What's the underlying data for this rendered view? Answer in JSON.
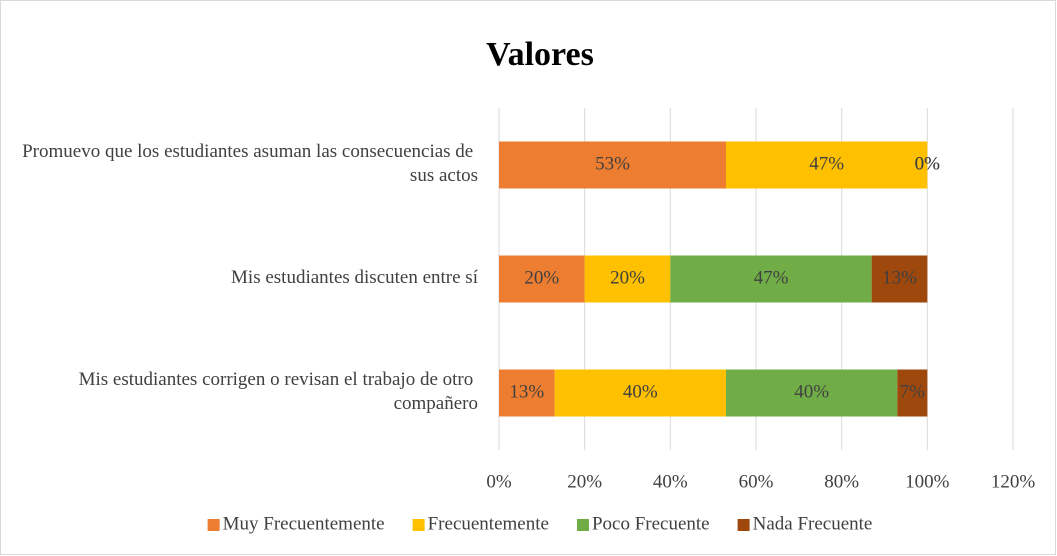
{
  "chart_data": {
    "type": "stacked_barh",
    "title": "Valores",
    "categories": [
      "Promuevo que los estudiantes asuman las consecuencias de sus actos",
      "Mis estudiantes discuten entre sí",
      "Mis estudiantes corrigen o revisan el trabajo de otro compañero"
    ],
    "series": [
      {
        "name": "Muy Frecuentemente",
        "color": "#ed7d31",
        "values": [
          53,
          20,
          13
        ],
        "value_labels": [
          "53%",
          "20%",
          "13%"
        ]
      },
      {
        "name": "Frecuentemente",
        "color": "#ffc000",
        "values": [
          47,
          20,
          40
        ],
        "value_labels": [
          "47%",
          "20%",
          "40%"
        ]
      },
      {
        "name": "Poco Frecuente",
        "color": "#70ad47",
        "values": [
          0,
          47,
          40
        ],
        "value_labels": [
          "0%",
          "47%",
          "40%"
        ]
      },
      {
        "name": "Nada Frecuente",
        "color": "#9e480e",
        "values": [
          0,
          13,
          7
        ],
        "value_labels": [
          "0%",
          "13%",
          "7%"
        ]
      }
    ],
    "xlim": [
      0,
      120
    ],
    "xticks": [
      {
        "value": 0,
        "label": "0%"
      },
      {
        "value": 20,
        "label": "20%"
      },
      {
        "value": 40,
        "label": "40%"
      },
      {
        "value": 60,
        "label": "60%"
      },
      {
        "value": 80,
        "label": "80%"
      },
      {
        "value": 100,
        "label": "100%"
      },
      {
        "value": 120,
        "label": "120%"
      }
    ],
    "grid": true,
    "legend": "bottom"
  }
}
